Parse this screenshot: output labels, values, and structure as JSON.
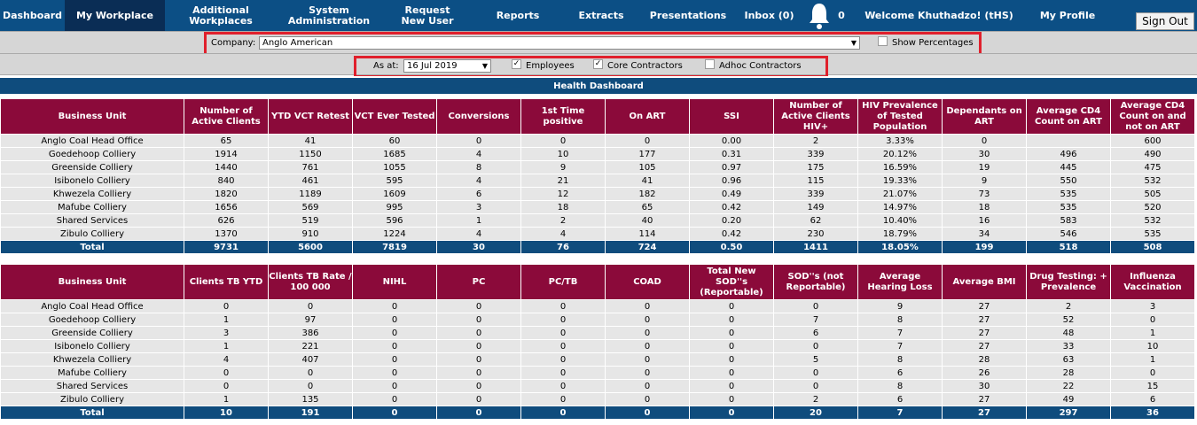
{
  "nav": {
    "items": [
      "Dashboard",
      "My Workplace",
      "Additional Workplaces",
      "System Administration",
      "Request New User",
      "Reports",
      "Extracts",
      "Presentations",
      "Inbox (0)"
    ],
    "bell_count": "0",
    "welcome": "Welcome Khuthadzo! (tHS)",
    "profile": "My Profile",
    "sign_out": "Sign Out"
  },
  "filters": {
    "company_label": "Company:",
    "company": "Anglo American",
    "show_percentages": "Show Percentages",
    "as_at_label": "As at:",
    "as_at": "16 Jul 2019",
    "employees": "Employees",
    "core_contractors": "Core Contractors",
    "adhoc_contractors": "Adhoc Contractors"
  },
  "section_title": "Health Dashboard",
  "tables": [
    {
      "headers": [
        "Business Unit",
        "Number of Active Clients",
        "YTD VCT Retest",
        "VCT Ever Tested",
        "Conversions",
        "1st Time positive",
        "On ART",
        "SSI",
        "Number of Active Clients HIV+",
        "HIV Prevalence of Tested Population",
        "Dependants on ART",
        "Average CD4 Count on ART",
        "Average CD4 Count on and not on ART"
      ],
      "rows": [
        [
          "Anglo Coal Head Office",
          "65",
          "41",
          "60",
          "0",
          "0",
          "0",
          "0.00",
          "2",
          "3.33%",
          "0",
          null,
          "600"
        ],
        [
          "Goedehoop Colliery",
          "1914",
          "1150",
          "1685",
          "4",
          "10",
          "177",
          "0.31",
          "339",
          "20.12%",
          "30",
          "496",
          "490"
        ],
        [
          "Greenside Colliery",
          "1440",
          "761",
          "1055",
          "8",
          "9",
          "105",
          "0.97",
          "175",
          "16.59%",
          "19",
          "445",
          "475"
        ],
        [
          "Isibonelo Colliery",
          "840",
          "461",
          "595",
          "4",
          "21",
          "41",
          "0.96",
          "115",
          "19.33%",
          "9",
          "550",
          "532"
        ],
        [
          "Khwezela Colliery",
          "1820",
          "1189",
          "1609",
          "6",
          "12",
          "182",
          "0.49",
          "339",
          "21.07%",
          "73",
          "535",
          "505"
        ],
        [
          "Mafube Colliery",
          "1656",
          "569",
          "995",
          "3",
          "18",
          "65",
          "0.42",
          "149",
          "14.97%",
          "18",
          "535",
          "520"
        ],
        [
          "Shared Services",
          "626",
          "519",
          "596",
          "1",
          "2",
          "40",
          "0.20",
          "62",
          "10.40%",
          "16",
          "583",
          "532"
        ],
        [
          "Zibulo Colliery",
          "1370",
          "910",
          "1224",
          "4",
          "4",
          "114",
          "0.42",
          "230",
          "18.79%",
          "34",
          "546",
          "535"
        ]
      ],
      "total": [
        "Total",
        "9731",
        "5600",
        "7819",
        "30",
        "76",
        "724",
        "0.50",
        "1411",
        "18.05%",
        "199",
        "518",
        "508"
      ]
    },
    {
      "headers": [
        "Business Unit",
        "Clients TB YTD",
        "Clients TB Rate / 100 000",
        "NIHL",
        "PC",
        "PC/TB",
        "COAD",
        "Total New SOD''s (Reportable)",
        "SOD''s (not Reportable)",
        "Average Hearing Loss",
        "Average BMI",
        "Drug Testing: + Prevalence",
        "Influenza Vaccination"
      ],
      "rows": [
        [
          "Anglo Coal Head Office",
          "0",
          "0",
          "0",
          "0",
          "0",
          "0",
          "0",
          "0",
          "9",
          "27",
          "2",
          "3"
        ],
        [
          "Goedehoop Colliery",
          "1",
          "97",
          "0",
          "0",
          "0",
          "0",
          "0",
          "7",
          "8",
          "27",
          "52",
          "0"
        ],
        [
          "Greenside Colliery",
          "3",
          "386",
          "0",
          "0",
          "0",
          "0",
          "0",
          "6",
          "7",
          "27",
          "48",
          "1"
        ],
        [
          "Isibonelo Colliery",
          "1",
          "221",
          "0",
          "0",
          "0",
          "0",
          "0",
          "0",
          "7",
          "27",
          "33",
          "10"
        ],
        [
          "Khwezela Colliery",
          "4",
          "407",
          "0",
          "0",
          "0",
          "0",
          "0",
          "5",
          "8",
          "28",
          "63",
          "1"
        ],
        [
          "Mafube Colliery",
          "0",
          "0",
          "0",
          "0",
          "0",
          "0",
          "0",
          "0",
          "6",
          "26",
          "28",
          "0"
        ],
        [
          "Shared Services",
          "0",
          "0",
          "0",
          "0",
          "0",
          "0",
          "0",
          "0",
          "8",
          "30",
          "22",
          "15"
        ],
        [
          "Zibulo Colliery",
          "1",
          "135",
          "0",
          "0",
          "0",
          "0",
          "0",
          "2",
          "6",
          "27",
          "49",
          "6"
        ]
      ],
      "total": [
        "Total",
        "10",
        "191",
        "0",
        "0",
        "0",
        "0",
        "0",
        "20",
        "7",
        "27",
        "297",
        "36"
      ]
    }
  ]
}
